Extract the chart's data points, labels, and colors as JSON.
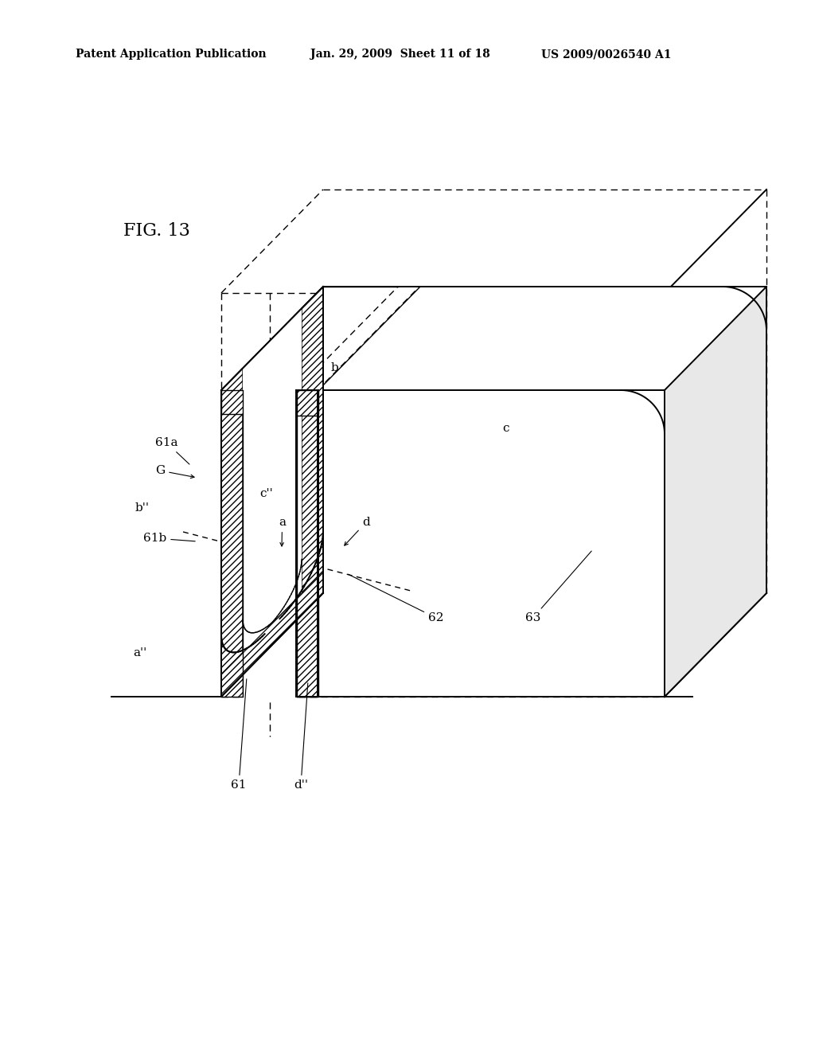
{
  "bg_color": "#ffffff",
  "line_color": "#000000",
  "fig_label": "FIG. 13",
  "header_left": "Patent Application Publication",
  "header_mid": "Jan. 29, 2009  Sheet 11 of 18",
  "header_right": "US 2009/0026540 A1"
}
